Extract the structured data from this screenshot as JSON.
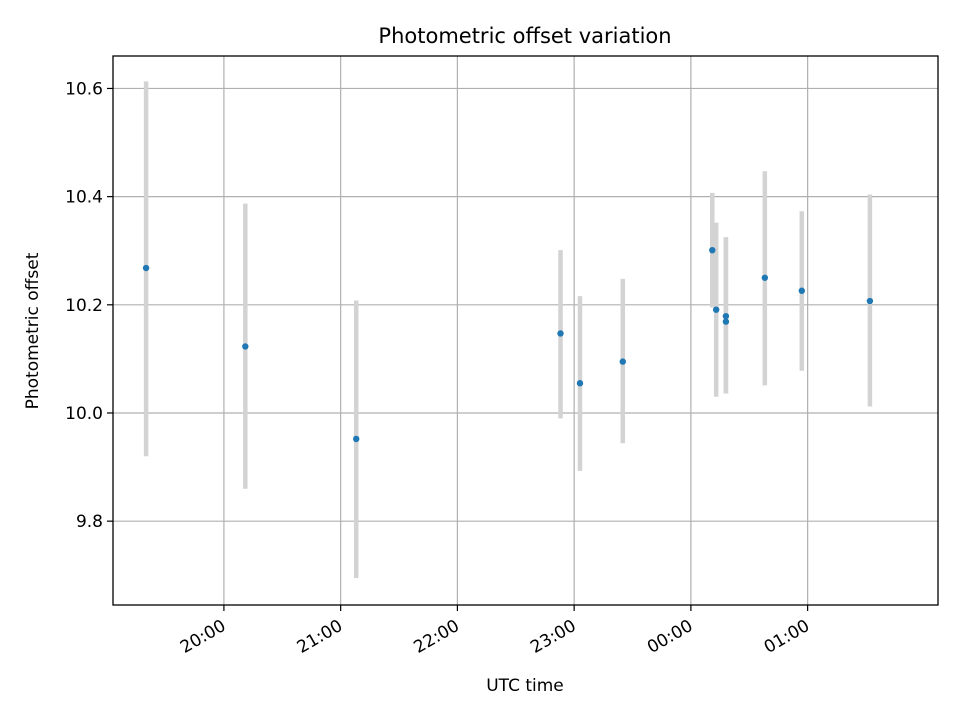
{
  "chart_data": {
    "type": "scatter",
    "title": "Photometric offset variation",
    "xlabel": "UTC time",
    "ylabel": "Photometric offset",
    "x_axis_kind": "time",
    "x_ticks": [
      "20:00",
      "21:00",
      "22:00",
      "23:00",
      "00:00",
      "01:00"
    ],
    "xlim": [
      "19:03",
      "02:07"
    ],
    "ylim": [
      9.645,
      10.66
    ],
    "y_ticks": [
      9.8,
      10.0,
      10.2,
      10.4,
      10.6
    ],
    "grid": true,
    "colors": {
      "point": "#1f77b4",
      "errorbar": "#d3d3d3",
      "grid": "#b0b0b0"
    },
    "series": [
      {
        "points": [
          {
            "x": "19:20",
            "y": 10.268,
            "err_low": 9.92,
            "err_high": 10.613
          },
          {
            "x": "20:11",
            "y": 10.123,
            "err_low": 9.86,
            "err_high": 10.387
          },
          {
            "x": "21:08",
            "y": 9.952,
            "err_low": 9.695,
            "err_high": 10.208
          },
          {
            "x": "22:53",
            "y": 10.147,
            "err_low": 9.99,
            "err_high": 10.301
          },
          {
            "x": "23:03",
            "y": 10.055,
            "err_low": 9.893,
            "err_high": 10.216
          },
          {
            "x": "23:25",
            "y": 10.095,
            "err_low": 9.944,
            "err_high": 10.248
          },
          {
            "x": "00:11",
            "y": 10.301,
            "err_low": 10.195,
            "err_high": 10.407
          },
          {
            "x": "00:13",
            "y": 10.191,
            "err_low": 10.03,
            "err_high": 10.352
          },
          {
            "x": "00:18",
            "y": 10.179,
            "err_low": 10.036,
            "err_high": 10.325
          },
          {
            "x": "00:18",
            "y": 10.169,
            "err_low": 10.036,
            "err_high": 10.325
          },
          {
            "x": "00:38",
            "y": 10.25,
            "err_low": 10.051,
            "err_high": 10.447
          },
          {
            "x": "00:57",
            "y": 10.226,
            "err_low": 10.078,
            "err_high": 10.373
          },
          {
            "x": "01:32",
            "y": 10.207,
            "err_low": 10.012,
            "err_high": 10.404
          }
        ]
      }
    ]
  }
}
